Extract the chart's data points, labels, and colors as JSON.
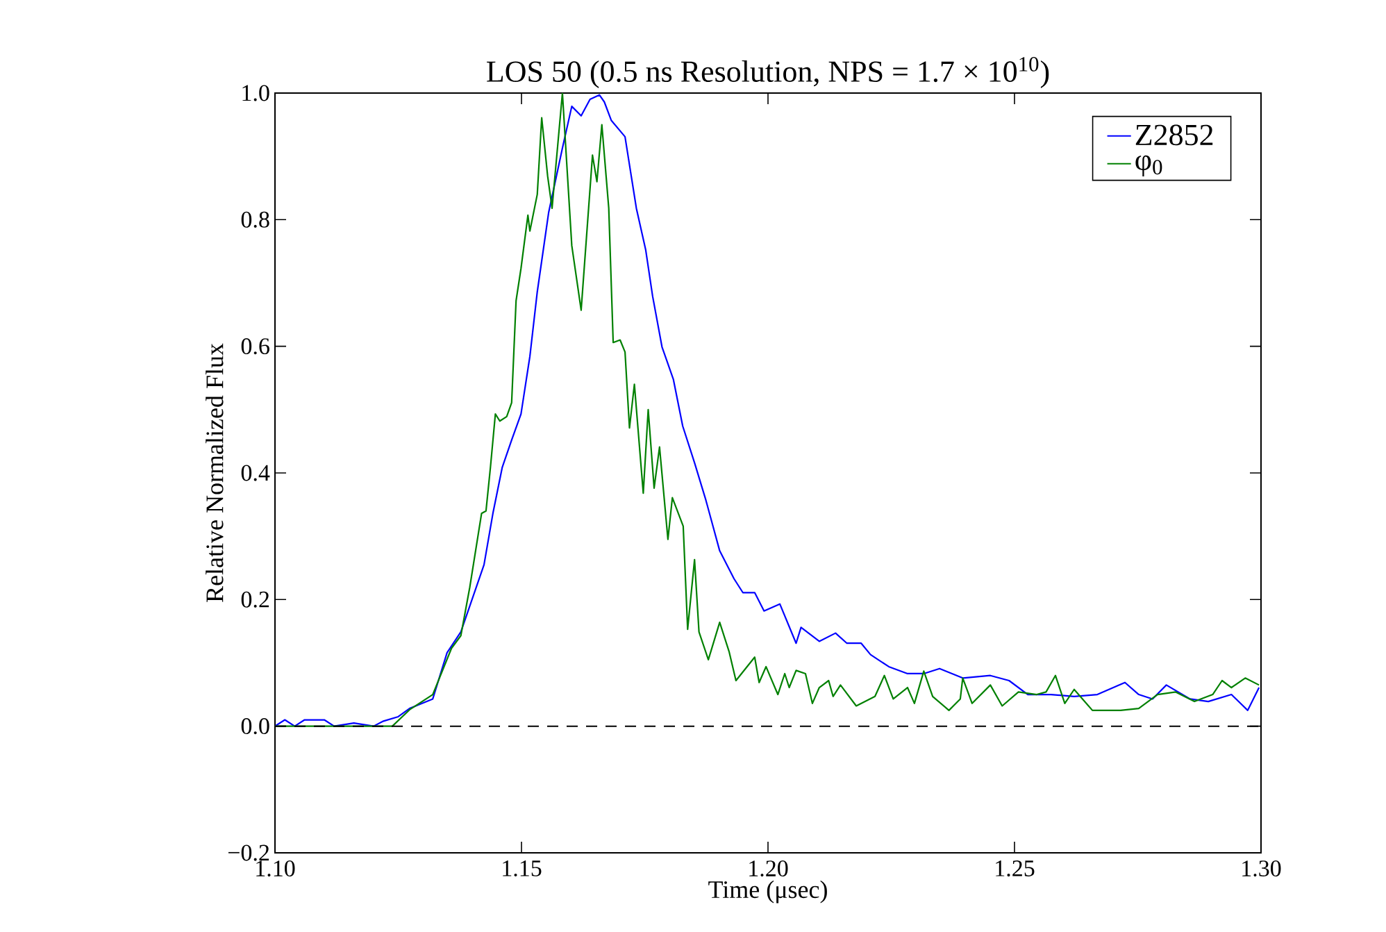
{
  "chart_data": {
    "type": "line",
    "title": "LOS 50 (0.5 ns Resolution, NPS = 1.7 × 10$^{10}$)",
    "xlabel": "Time (μsec)",
    "ylabel": "Relative Normalized Flux",
    "xlim": [
      1.1,
      1.3
    ],
    "ylim": [
      -0.2,
      1.0
    ],
    "xticks": [
      {
        "value": 1.1,
        "label": "1.10"
      },
      {
        "value": 1.15,
        "label": "1.15"
      },
      {
        "value": 1.2,
        "label": "1.20"
      },
      {
        "value": 1.25,
        "label": "1.25"
      },
      {
        "value": 1.3,
        "label": "1.30"
      }
    ],
    "yticks": [
      {
        "value": -0.2,
        "label": "−0.2"
      },
      {
        "value": 0,
        "label": "0.0"
      },
      {
        "value": 0.2,
        "label": "0.2"
      },
      {
        "value": 0.4,
        "label": "0.4"
      },
      {
        "value": 0.6,
        "label": "0.6"
      },
      {
        "value": 0.8,
        "label": "0.8"
      },
      {
        "value": 1.0,
        "label": "1.0"
      }
    ],
    "legend": "top right",
    "line_style": "solid",
    "ref_lines": [
      {
        "axis": "y",
        "value": 0,
        "color": "#000000",
        "line_style": "dashed"
      }
    ],
    "series": [
      {
        "name": "Z2852",
        "color": "#0000ff",
        "x": [
          1.1,
          1.102,
          1.104,
          1.106,
          1.11,
          1.112,
          1.116,
          1.12,
          1.122,
          1.125,
          1.1273,
          1.132,
          1.1349,
          1.1377,
          1.1424,
          1.1442,
          1.1461,
          1.148,
          1.1499,
          1.1517,
          1.1532,
          1.1555,
          1.1583,
          1.1602,
          1.1621,
          1.1639,
          1.1658,
          1.1668,
          1.1682,
          1.171,
          1.1733,
          1.1752,
          1.1766,
          1.1785,
          1.1808,
          1.1827,
          1.1851,
          1.1874,
          1.1902,
          1.1931,
          1.1949,
          1.1973,
          1.1992,
          1.2024,
          1.2057,
          1.2067,
          1.2104,
          1.2137,
          1.216,
          1.2189,
          1.2208,
          1.2245,
          1.2283,
          1.2316,
          1.2348,
          1.2395,
          1.2451,
          1.2489,
          1.2527,
          1.2574,
          1.2621,
          1.2668,
          1.2724,
          1.2752,
          1.278,
          1.2808,
          1.2856,
          1.2893,
          1.294,
          1.2973,
          1.2996
        ],
        "values": [
          0.0,
          0.01,
          0.0,
          0.01,
          0.01,
          0.0,
          0.005,
          0.0,
          0.008,
          0.015,
          0.028,
          0.043,
          0.116,
          0.149,
          0.255,
          0.336,
          0.409,
          0.452,
          0.493,
          0.584,
          0.686,
          0.811,
          0.913,
          0.979,
          0.964,
          0.99,
          0.997,
          0.986,
          0.957,
          0.931,
          0.818,
          0.752,
          0.679,
          0.599,
          0.548,
          0.474,
          0.416,
          0.357,
          0.277,
          0.233,
          0.211,
          0.211,
          0.182,
          0.193,
          0.131,
          0.156,
          0.134,
          0.147,
          0.131,
          0.131,
          0.113,
          0.094,
          0.083,
          0.083,
          0.091,
          0.076,
          0.08,
          0.072,
          0.05,
          0.05,
          0.047,
          0.05,
          0.069,
          0.05,
          0.043,
          0.065,
          0.043,
          0.039,
          0.05,
          0.025,
          0.061
        ]
      },
      {
        "name": "φ$_{0}$",
        "color": "#008000",
        "x": [
          1.1,
          1.1238,
          1.1273,
          1.132,
          1.1358,
          1.1377,
          1.1395,
          1.1419,
          1.1428,
          1.1437,
          1.1447,
          1.1456,
          1.147,
          1.148,
          1.1489,
          1.1499,
          1.1513,
          1.1517,
          1.1532,
          1.1541,
          1.1553,
          1.1562,
          1.1583,
          1.1602,
          1.1621,
          1.1644,
          1.1653,
          1.1663,
          1.1677,
          1.1686,
          1.17,
          1.171,
          1.1719,
          1.1729,
          1.1747,
          1.1757,
          1.1769,
          1.178,
          1.1797,
          1.1806,
          1.1828,
          1.1837,
          1.1851,
          1.186,
          1.1879,
          1.1902,
          1.1921,
          1.1935,
          1.1973,
          1.1982,
          1.1996,
          1.202,
          1.2034,
          1.2043,
          1.2057,
          1.2076,
          1.209,
          1.2104,
          1.2123,
          1.2132,
          1.2147,
          1.2179,
          1.2217,
          1.2236,
          1.2254,
          1.2283,
          1.2297,
          1.2316,
          1.2334,
          1.2367,
          1.239,
          1.2395,
          1.2414,
          1.2451,
          1.2475,
          1.2508,
          1.2545,
          1.2564,
          1.2583,
          1.2602,
          1.2621,
          1.2658,
          1.2715,
          1.2752,
          1.279,
          1.2827,
          1.2865,
          1.2902,
          1.2921,
          1.294,
          1.2968,
          1.2996
        ],
        "values": [
          0.0,
          0.0,
          0.026,
          0.05,
          0.123,
          0.143,
          0.219,
          0.336,
          0.34,
          0.409,
          0.493,
          0.482,
          0.489,
          0.511,
          0.672,
          0.723,
          0.807,
          0.782,
          0.84,
          0.961,
          0.869,
          0.818,
          1.0,
          0.759,
          0.657,
          0.902,
          0.86,
          0.95,
          0.818,
          0.606,
          0.61,
          0.591,
          0.471,
          0.54,
          0.368,
          0.5,
          0.376,
          0.441,
          0.295,
          0.361,
          0.316,
          0.153,
          0.263,
          0.149,
          0.105,
          0.164,
          0.118,
          0.072,
          0.109,
          0.069,
          0.094,
          0.05,
          0.083,
          0.061,
          0.088,
          0.083,
          0.036,
          0.061,
          0.072,
          0.047,
          0.065,
          0.032,
          0.047,
          0.08,
          0.043,
          0.061,
          0.036,
          0.087,
          0.047,
          0.025,
          0.043,
          0.076,
          0.036,
          0.065,
          0.032,
          0.054,
          0.05,
          0.054,
          0.08,
          0.036,
          0.058,
          0.025,
          0.025,
          0.028,
          0.05,
          0.054,
          0.039,
          0.05,
          0.072,
          0.061,
          0.076,
          0.065
        ]
      }
    ]
  }
}
